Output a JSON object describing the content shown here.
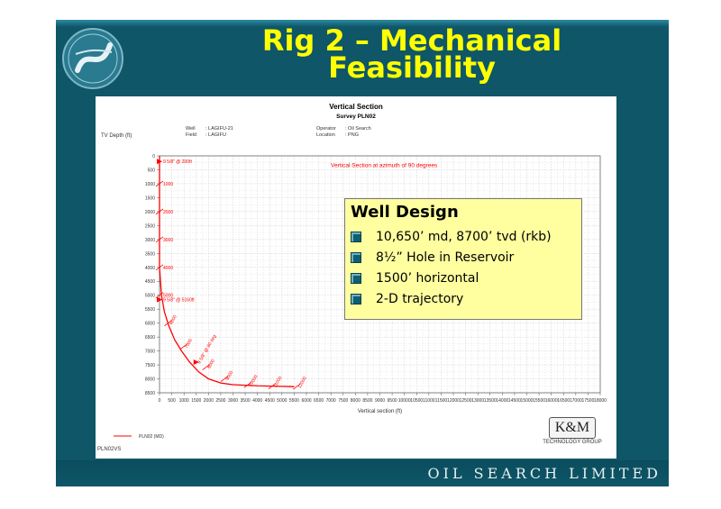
{
  "slide": {
    "title_line1": "Rig 2 – Mechanical",
    "title_line2": "Feasibility",
    "company": "OIL SEARCH LIMITED",
    "logo_icon": "oil-search-swoosh-logo"
  },
  "colors": {
    "background": "#0e5668",
    "title": "#ffff00",
    "curve": "#ff0000",
    "well_design_box": "#ffffa0"
  },
  "chart_data": {
    "type": "line",
    "title": "Vertical Section",
    "subtitle": "Survey PLN02",
    "header": {
      "well_label": "Well",
      "well_value": ": LAGIFU-21",
      "field_label": "Field",
      "field_value": ": LAGIFU",
      "operator_label": "Operator",
      "operator_value": ": Oil Search",
      "location_label": "Location",
      "location_value": ": PNG"
    },
    "ylabel": "TV Depth (ft)",
    "xlabel": "Vertical section (ft)",
    "annotation": "Vertical Section at azimuth of 90 degrees",
    "x_ticks": [
      0,
      500,
      1000,
      1500,
      2000,
      2500,
      3000,
      3500,
      4000,
      4500,
      5000,
      5500,
      6000,
      6500,
      7000,
      7500,
      8000,
      8500,
      9000,
      9500,
      10000,
      10500,
      11000,
      11500,
      12000,
      12500,
      13000,
      13500,
      14000,
      14500,
      15000,
      15500,
      16000,
      16500,
      17000,
      17500,
      18000
    ],
    "y_ticks": [
      0,
      500,
      1000,
      1500,
      2000,
      2500,
      3000,
      3500,
      4000,
      4500,
      5000,
      5500,
      6000,
      6500,
      7000,
      7500,
      8000,
      8500
    ],
    "xlim": [
      0,
      18000
    ],
    "ylim": [
      0,
      8500
    ],
    "y_reversed": true,
    "grid": true,
    "series": [
      {
        "name": "PLN02 (MD)",
        "x": [
          0,
          0,
          0,
          0,
          0,
          80,
          200,
          380,
          620,
          900,
          1230,
          1600,
          2000,
          2500,
          3000,
          4000,
          5000,
          5500
        ],
        "y": [
          0,
          1000,
          2000,
          3000,
          4000,
          5000,
          5600,
          6100,
          6600,
          7000,
          7400,
          7750,
          8000,
          8150,
          8210,
          8250,
          8270,
          8280
        ]
      }
    ],
    "md_markers": [
      {
        "label": "1000",
        "x": 0,
        "y": 1000
      },
      {
        "label": "2000",
        "x": 0,
        "y": 2000
      },
      {
        "label": "3000",
        "x": 0,
        "y": 3000
      },
      {
        "label": "4000",
        "x": 0,
        "y": 4000
      },
      {
        "label": "5000",
        "x": 0,
        "y": 5000
      },
      {
        "label": "6000",
        "x": 350,
        "y": 6000
      },
      {
        "label": "7000",
        "x": 980,
        "y": 6850
      },
      {
        "label": "8000",
        "x": 1900,
        "y": 7580
      },
      {
        "label": "9000",
        "x": 2650,
        "y": 8000
      },
      {
        "label": "10000",
        "x": 3600,
        "y": 8220
      },
      {
        "label": "11000",
        "x": 4600,
        "y": 8260
      },
      {
        "label": "12000",
        "x": 5600,
        "y": 8280
      }
    ],
    "casing_points": [
      {
        "label": "9 5/8\" @ 200ft",
        "x": 0,
        "y": 200
      },
      {
        "label": "9 5/8\" @ 5160ft",
        "x": 0,
        "y": 5160
      },
      {
        "label": "9 5/8\" @ 80 deg",
        "x": 1500,
        "y": 7400
      }
    ],
    "legend": [
      "PLN02 (MD)"
    ],
    "legend_placement": "bottom-left",
    "plot_id": "PLN02VS"
  },
  "well_design": {
    "title": "Well Design",
    "items": [
      "10,650’ md, 8700’ tvd (rkb)",
      "8½” Hole in Reservoir",
      "1500’ horizontal",
      "2-D trajectory"
    ]
  },
  "km_logo": {
    "text": "K&M",
    "sub": "TECHNOLOGY GROUP"
  }
}
